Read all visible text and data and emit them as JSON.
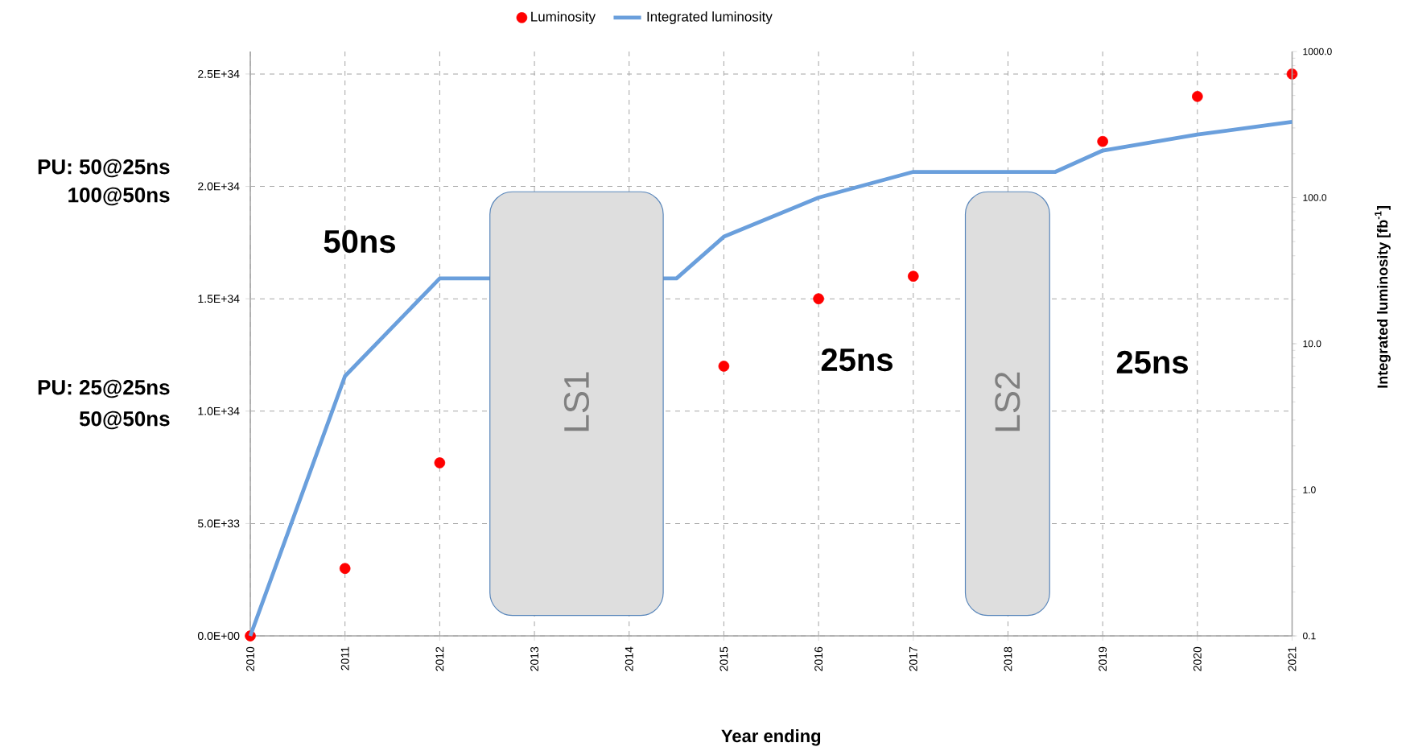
{
  "chart_data": {
    "type": "line",
    "xlabel": "Year ending",
    "y2label": "Integrated luminosity [fb$^{-1}$]",
    "series": [
      {
        "name": "Luminosity",
        "type": "scatter",
        "marker": "circle",
        "color": "#ff0000",
        "x": [
          2010,
          2011,
          2012,
          2015,
          2016,
          2017,
          2019,
          2020,
          2021
        ],
        "values": [
          0,
          3e+33,
          7.7e+33,
          1.2e+34,
          1.5e+34,
          1.6e+34,
          2.2e+34,
          2.4e+34,
          2.5e+34
        ]
      },
      {
        "name": "Integrated luminosity",
        "axis": "y2",
        "color": "#6a9fdc",
        "x": [
          2010,
          2011,
          2012,
          2014.5,
          2015,
          2016,
          2017,
          2018.5,
          2019,
          2020,
          2021
        ],
        "values": [
          0.1,
          6,
          28,
          28,
          54,
          100,
          150,
          150,
          210,
          270,
          330
        ]
      }
    ],
    "xlim": [
      2010,
      2021
    ],
    "xticks": [
      2010,
      2011,
      2012,
      2013,
      2014,
      2015,
      2016,
      2017,
      2018,
      2019,
      2020,
      2021
    ],
    "ylim": [
      0,
      2.6e+34
    ],
    "yticks": [
      {
        "value": 0,
        "label": "0.0E+00"
      },
      {
        "value": 5e+33,
        "label": "5.0E+33"
      },
      {
        "value": 1e+34,
        "label": "1.0E+34"
      },
      {
        "value": 1.5e+34,
        "label": "1.5E+34"
      },
      {
        "value": 2e+34,
        "label": "2.0E+34"
      },
      {
        "value": 2.5e+34,
        "label": "2.5E+34"
      }
    ],
    "y2lim": [
      0.1,
      1000
    ],
    "y2ticks": [
      {
        "value": 0.1,
        "label": "0.1"
      },
      {
        "value": 1,
        "label": "1.0"
      },
      {
        "value": 10,
        "label": "10.0"
      },
      {
        "value": 100,
        "label": "100.0"
      },
      {
        "value": 1000,
        "label": "1000.0"
      }
    ],
    "log": "y2",
    "bands": [
      {
        "axis": "x",
        "from": 2012.53,
        "to": 2014.36,
        "label": "LS1",
        "color": "#dedede"
      },
      {
        "axis": "x",
        "from": 2017.55,
        "to": 2018.44,
        "label": "LS2",
        "color": "#dedede"
      }
    ],
    "annotations": [
      "50ns",
      "25ns",
      "25ns",
      "PU: 50@25ns",
      "100@50ns",
      "PU: 25@25ns",
      "50@50ns"
    ],
    "grid": true,
    "legend": "top"
  }
}
